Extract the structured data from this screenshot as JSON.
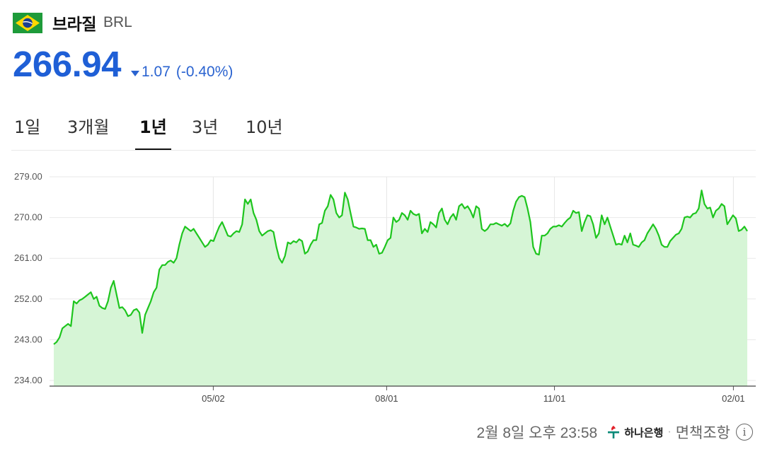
{
  "header": {
    "name": "브라질",
    "code": "BRL"
  },
  "quote": {
    "price": "266.94",
    "change": "1.07",
    "change_pct": "(-0.40%)",
    "direction": "down"
  },
  "tabs": [
    {
      "label": "1일",
      "active": false
    },
    {
      "label": "3개월",
      "active": false
    },
    {
      "label": "1년",
      "active": true
    },
    {
      "label": "3년",
      "active": false
    },
    {
      "label": "10년",
      "active": false
    }
  ],
  "chart_data": {
    "type": "area",
    "ylim": [
      234,
      279
    ],
    "yticks": [
      "279.00",
      "270.00",
      "261.00",
      "252.00",
      "243.00",
      "234.00"
    ],
    "ytick_values": [
      279,
      270,
      261,
      252,
      243,
      234
    ],
    "xticks": [
      "05/02",
      "08/01",
      "11/01",
      "02/01"
    ],
    "line_color": "#1ec51e",
    "fill_color": "#d6f5d6",
    "series": [
      {
        "values": [
          242.0,
          242.5,
          243.5,
          245.5,
          246.0,
          246.5,
          246.0,
          251.5,
          251.0,
          251.7,
          252.0,
          252.5,
          253.0,
          253.5,
          252.0,
          252.5,
          250.5,
          250.0,
          249.8,
          251.5,
          254.5,
          256.0,
          253.0,
          250.0,
          250.2,
          249.5,
          248.2,
          248.5,
          249.5,
          249.8,
          249.0,
          244.5,
          248.5,
          250.0,
          251.5,
          253.5,
          254.5,
          258.5,
          259.5,
          259.5,
          260.2,
          260.5,
          260.0,
          261.0,
          264.0,
          266.5,
          268.0,
          267.5,
          267.0,
          267.5,
          266.5,
          265.5,
          264.5,
          263.5,
          264.0,
          265.0,
          264.8,
          266.5,
          268.0,
          269.0,
          267.5,
          266.0,
          265.8,
          266.5,
          267.0,
          266.8,
          268.5,
          274.0,
          273.0,
          274.0,
          271.0,
          269.5,
          267.0,
          266.0,
          266.5,
          267.0,
          267.2,
          266.8,
          263.5,
          261.0,
          260.0,
          261.5,
          264.5,
          264.2,
          264.8,
          264.5,
          265.2,
          264.8,
          262.0,
          262.5,
          264.0,
          265.0,
          265.0,
          268.5,
          268.8,
          271.5,
          272.5,
          275.0,
          274.0,
          271.0,
          270.0,
          270.5,
          275.5,
          274.0,
          271.0,
          268.0,
          267.8,
          267.5,
          267.6,
          267.5,
          265.0,
          265.0,
          263.5,
          264.0,
          262.0,
          262.2,
          263.5,
          265.0,
          265.5,
          270.0,
          269.0,
          269.5,
          271.0,
          270.5,
          269.5,
          271.5,
          270.8,
          270.5,
          270.8,
          266.5,
          267.5,
          266.8,
          269.0,
          268.5,
          267.8,
          271.0,
          272.0,
          269.5,
          268.5,
          270.0,
          270.8,
          269.5,
          272.5,
          273.0,
          272.0,
          272.5,
          271.5,
          270.0,
          272.5,
          272.0,
          267.5,
          267.0,
          267.5,
          268.5,
          268.5,
          268.8,
          268.5,
          268.2,
          268.6,
          268.0,
          268.7,
          271.5,
          273.5,
          274.5,
          274.8,
          274.5,
          272.0,
          269.0,
          263.5,
          262.0,
          261.8,
          266.0,
          266.0,
          266.5,
          267.5,
          268.0,
          268.0,
          268.3,
          268.0,
          268.8,
          269.5,
          270.0,
          271.5,
          271.0,
          271.2,
          267.0,
          269.0,
          270.5,
          270.3,
          268.5,
          265.5,
          266.5,
          270.5,
          268.5,
          270.0,
          268.0,
          266.0,
          264.0,
          264.2,
          264.0,
          266.0,
          264.5,
          266.5,
          264.0,
          263.8,
          263.5,
          264.5,
          265.0,
          266.5,
          267.5,
          268.5,
          267.5,
          266.0,
          264.0,
          263.5,
          263.5,
          264.8,
          265.5,
          266.2,
          266.5,
          267.5,
          270.0,
          270.2,
          270.0,
          270.8,
          271.0,
          272.0,
          276.0,
          273.0,
          272.0,
          272.2,
          270.0,
          271.5,
          272.0,
          273.0,
          272.5,
          268.5,
          269.5,
          270.5,
          269.8,
          267.0,
          267.3,
          268.0,
          267.0
        ]
      }
    ]
  },
  "footer": {
    "timestamp": "2월 8일 오후 23:58",
    "bank": "하나은행",
    "separator": "·",
    "disclaimer": "면책조항",
    "info_glyph": "i"
  }
}
